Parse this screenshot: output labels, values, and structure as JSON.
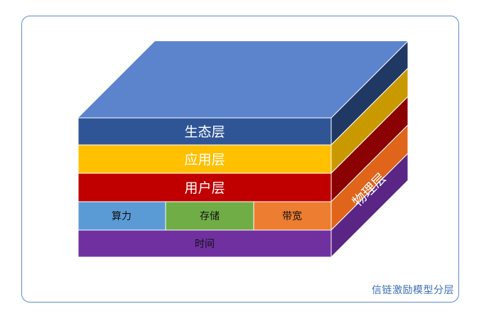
{
  "layers": {
    "ecology": "生态层",
    "application": "应用层",
    "user": "用户层",
    "physical": {
      "label": "物理层",
      "cells": [
        "算力",
        "存储",
        "带宽"
      ],
      "time": "时间"
    }
  },
  "caption": "信链激励模型分层",
  "colors": {
    "top": "#5b84cc",
    "ecology": "#2f5597",
    "application": "#ffc000",
    "user": "#c00000",
    "compute": "#5b9bd5",
    "storage": "#70ad47",
    "bandwidth": "#ed7d31",
    "time": "#7030a0",
    "frame": "#5b8dc9"
  }
}
